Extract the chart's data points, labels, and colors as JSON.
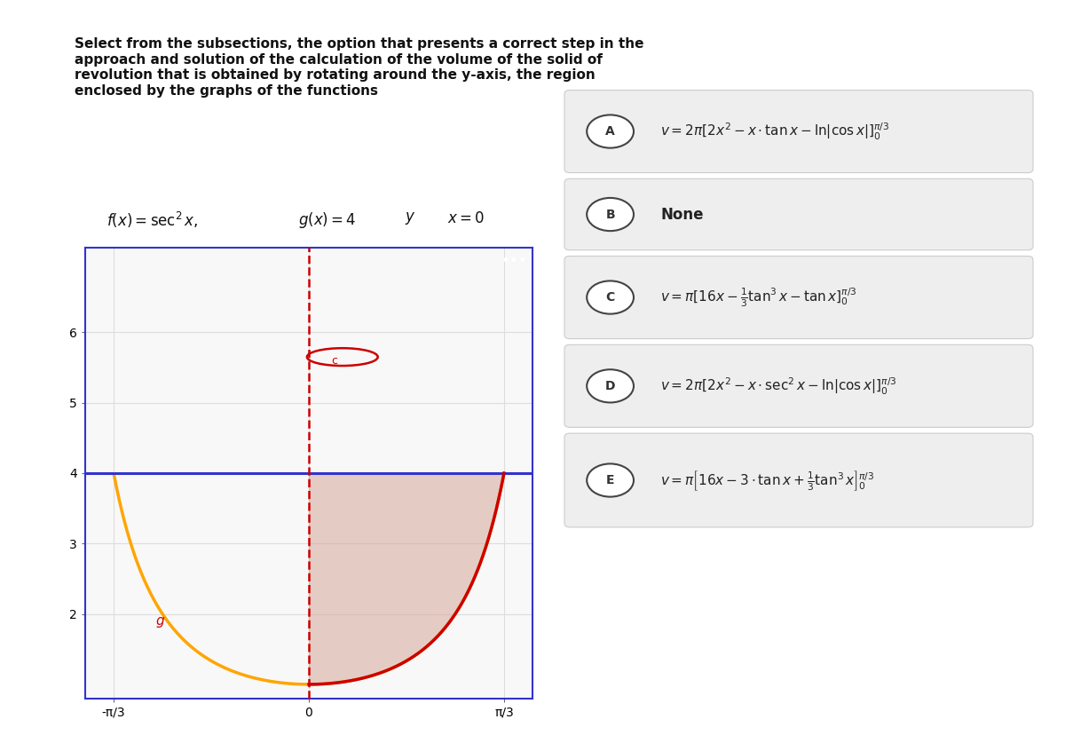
{
  "title_text": "Select from the subsections, the option that presents a correct step in the\napproach and solution of the calculation of the volume of the solid of\nrevolution that is obtained by rotating around the y-axis, the region\nenclosed by the graphs of the functions",
  "func_label": "f(x) = sec²x,  g(x) = 4  y  x = 0",
  "plot_xlim": [
    -1.2,
    1.2
  ],
  "plot_ylim": [
    0.8,
    7.2
  ],
  "xticks": [
    -1.0472,
    0,
    1.0472
  ],
  "xtick_labels": [
    "-π/3",
    "0",
    "π/3"
  ],
  "yticks": [
    2,
    3,
    4,
    5,
    6
  ],
  "g_line_y": 4,
  "background_color": "#ffffff",
  "plot_bg": "#f8f8f8",
  "grid_color": "#dddddd",
  "orange_color": "#FFA500",
  "red_color": "#CC0000",
  "blue_color": "#3333CC",
  "shade_color": "#D4A89A",
  "shade_alpha": 0.55,
  "options": [
    {
      "label": "A",
      "text": "$v = 2\\pi[2x^2 - x\\cdot\\tan x - \\ln|\\cos x|]_0^{\\pi/3}$"
    },
    {
      "label": "B",
      "text": "None"
    },
    {
      "label": "C",
      "text": "$v = \\pi[16x - \\frac{1}{3}\\tan^3 x - \\tan x]_0^{\\pi/3}$"
    },
    {
      "label": "D",
      "text": "$v = 2\\pi[2x^2 - x\\cdot\\sec^2 x - \\ln|\\cos x|]_0^{\\pi/3}$"
    },
    {
      "label": "E",
      "text": "$v = \\pi\\left[16x - 3\\cdot\\tan x + \\frac{1}{3}\\tan^3 x\\right]_0^{\\pi/3}$"
    }
  ]
}
